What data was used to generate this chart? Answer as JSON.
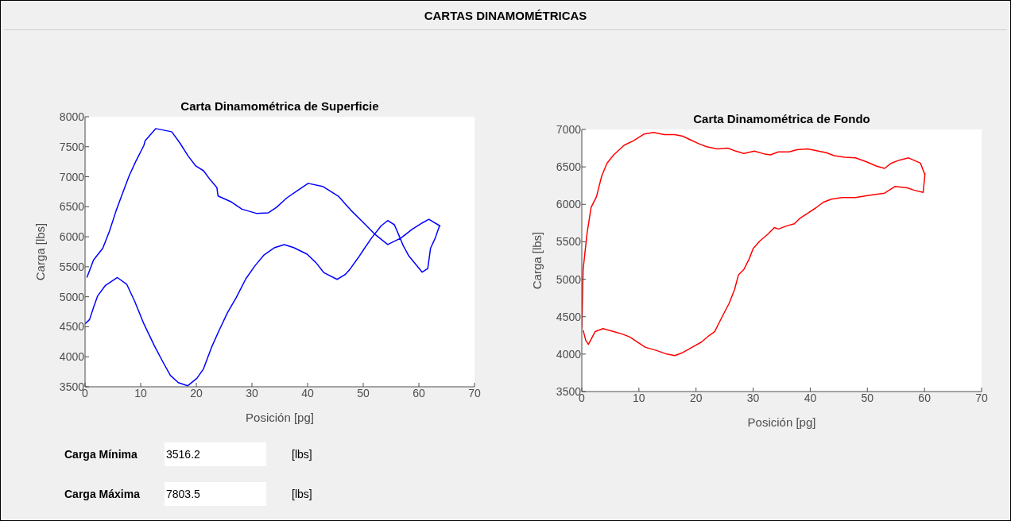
{
  "chart_data": [
    {
      "type": "other",
      "title": "CARTAS DINAMOMÉTRICAS"
    },
    {
      "type": "line",
      "title": "Carta Dinamométrica de Superficie",
      "xlabel": "Posición [pg]",
      "ylabel": "Carga [lbs]",
      "xlim": [
        0,
        70
      ],
      "xticks": [
        0,
        10,
        20,
        30,
        40,
        50,
        60,
        70
      ],
      "ylim": [
        3500,
        8000
      ],
      "yticks": [
        3500,
        4000,
        4500,
        5000,
        5500,
        6000,
        6500,
        7000,
        7500,
        8000
      ],
      "series": [
        {
          "color": "#0000ff",
          "x": [
            0,
            0.81,
            1.52,
            2.24,
            3.67,
            5.81,
            7.48,
            8.9,
            10.57,
            12.48,
            13.9,
            15.33,
            16.76,
            18.43,
            20.1,
            21.3,
            22.7,
            24.1,
            25.57,
            27.2,
            28.9,
            30.57,
            32.2,
            34.1,
            35.8,
            37.5,
            39.9,
            41.5,
            42.95,
            45.3,
            46.76,
            47.7,
            49.1,
            50.1,
            51.5,
            53.2,
            54.4,
            55.6,
            56.3,
            57.2,
            58.2,
            60.6,
            61.6,
            62.1,
            62.95,
            63.7,
            63.8,
            61.8,
            60.6,
            58.7,
            56.8,
            54.4,
            52,
            50.1,
            47.7,
            45.6,
            42.7,
            40.1,
            38.2,
            36.3,
            34.4,
            32.95,
            30.8,
            28.2,
            26.3,
            23.9,
            23.7,
            22.5,
            21.3,
            19.9,
            18.5,
            17,
            15.57,
            12.7,
            10.8,
            10.57,
            9.14,
            7.95,
            6.76,
            5.57,
            4.38,
            3.19,
            1.52,
            0.33
          ],
          "values": [
            4550,
            4620,
            4820,
            5010,
            5190,
            5320,
            5210,
            4930,
            4550,
            4180,
            3930,
            3690,
            3570,
            3516,
            3640,
            3800,
            4150,
            4440,
            4730,
            4990,
            5300,
            5520,
            5700,
            5820,
            5870,
            5820,
            5710,
            5570,
            5400,
            5290,
            5370,
            5470,
            5650,
            5790,
            5980,
            6180,
            6270,
            6200,
            6050,
            5850,
            5680,
            5410,
            5470,
            5810,
            5980,
            6180,
            6180,
            6290,
            6230,
            6120,
            5980,
            5870,
            6050,
            6230,
            6450,
            6670,
            6840,
            6890,
            6770,
            6650,
            6490,
            6400,
            6390,
            6460,
            6580,
            6680,
            6820,
            6950,
            7100,
            7180,
            7350,
            7570,
            7750,
            7803,
            7600,
            7520,
            7260,
            7020,
            6730,
            6430,
            6090,
            5810,
            5610,
            5320
          ]
        }
      ],
      "annotations": [
        "Carga Mínima",
        "3516.2",
        "[lbs]",
        "Carga Máxima",
        "7803.5",
        "[lbs]"
      ]
    },
    {
      "type": "line",
      "title": "Carta Dinamométrica de Fondo",
      "xlabel": "Posición [pg]",
      "ylabel": "Carga [lbs]",
      "xlim": [
        0,
        70
      ],
      "xticks": [
        0,
        10,
        20,
        30,
        40,
        50,
        60,
        70
      ],
      "ylim": [
        3500,
        7000
      ],
      "yticks": [
        3500,
        4000,
        4500,
        5000,
        5500,
        6000,
        6500,
        7000
      ],
      "series": [
        {
          "color": "#ff0000",
          "x": [
            0,
            0.23,
            0.93,
            1.63,
            2.56,
            3.49,
            4.42,
            5.58,
            7.44,
            9.07,
            10.93,
            12.56,
            14.42,
            16.28,
            17.67,
            19.07,
            20.47,
            21.86,
            23.72,
            25.58,
            26.98,
            28.37,
            30.23,
            32.09,
            33.02,
            34.42,
            36.28,
            37.67,
            39.53,
            40.93,
            42.79,
            44.19,
            46.05,
            47.91,
            49.77,
            51.63,
            53.02,
            54.19,
            55.58,
            57.21,
            59.3,
            60,
            60.09,
            59.77,
            58.14,
            56.98,
            54.88,
            53.02,
            50.23,
            47.91,
            45.58,
            43.72,
            42.33,
            40.93,
            39.53,
            38.14,
            37.21,
            35.81,
            34.42,
            33.72,
            32.56,
            31.16,
            30,
            29.3,
            28.37,
            27.44,
            26.74,
            25.81,
            24.65,
            23.26,
            22.33,
            20.93,
            19.53,
            17.67,
            16.28,
            14.88,
            13.02,
            11.16,
            9.77,
            8.37,
            6.98,
            5.58,
            3.72,
            2.33,
            1.16,
            0.7,
            0.23
          ],
          "values": [
            4340,
            5130,
            5620,
            5960,
            6100,
            6380,
            6550,
            6660,
            6790,
            6850,
            6940,
            6960,
            6930,
            6930,
            6910,
            6860,
            6810,
            6770,
            6740,
            6750,
            6710,
            6680,
            6710,
            6670,
            6660,
            6700,
            6700,
            6730,
            6740,
            6720,
            6690,
            6650,
            6630,
            6620,
            6570,
            6510,
            6480,
            6550,
            6590,
            6620,
            6550,
            6410,
            6410,
            6160,
            6190,
            6220,
            6240,
            6150,
            6120,
            6090,
            6090,
            6070,
            6030,
            5950,
            5880,
            5810,
            5740,
            5710,
            5670,
            5690,
            5600,
            5510,
            5410,
            5270,
            5130,
            5060,
            4860,
            4680,
            4510,
            4300,
            4250,
            4160,
            4100,
            4020,
            3980,
            4000,
            4050,
            4090,
            4160,
            4230,
            4270,
            4300,
            4340,
            4300,
            4130,
            4180,
            4320
          ]
        }
      ]
    }
  ]
}
